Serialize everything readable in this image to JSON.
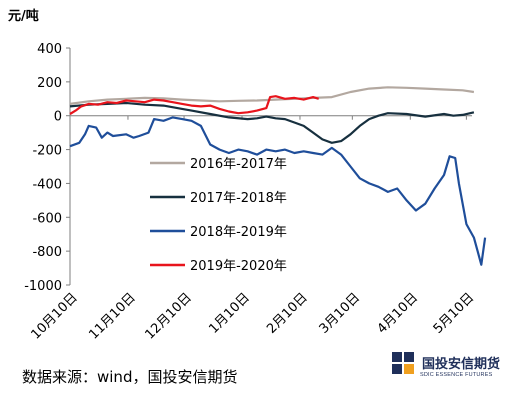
{
  "chart_data": {
    "type": "line",
    "unit_label": "元/吨",
    "ylim": [
      -1000,
      400
    ],
    "yticks": [
      400,
      200,
      0,
      -200,
      -400,
      -600,
      -800,
      -1000
    ],
    "x_domain": [
      0,
      215
    ],
    "xticks": [
      {
        "label": "10月10日",
        "pos": 0
      },
      {
        "label": "11月10日",
        "pos": 31
      },
      {
        "label": "12月10日",
        "pos": 61
      },
      {
        "label": "1月10日",
        "pos": 92
      },
      {
        "label": "2月10日",
        "pos": 123
      },
      {
        "label": "3月10日",
        "pos": 151
      },
      {
        "label": "4月10日",
        "pos": 182
      },
      {
        "label": "5月10日",
        "pos": 212
      }
    ],
    "grid": false,
    "legend_position": "center",
    "series": [
      {
        "name": "2016年-2017年",
        "color": "#b3a8a0",
        "points": [
          [
            0,
            70
          ],
          [
            10,
            85
          ],
          [
            20,
            95
          ],
          [
            30,
            100
          ],
          [
            40,
            105
          ],
          [
            50,
            102
          ],
          [
            60,
            95
          ],
          [
            70,
            90
          ],
          [
            80,
            85
          ],
          [
            90,
            88
          ],
          [
            100,
            90
          ],
          [
            110,
            95
          ],
          [
            120,
            100
          ],
          [
            130,
            105
          ],
          [
            140,
            110
          ],
          [
            150,
            140
          ],
          [
            160,
            160
          ],
          [
            170,
            168
          ],
          [
            180,
            165
          ],
          [
            190,
            160
          ],
          [
            200,
            155
          ],
          [
            210,
            150
          ],
          [
            216,
            140
          ]
        ]
      },
      {
        "name": "2017年-2018年",
        "color": "#17303f",
        "points": [
          [
            0,
            55
          ],
          [
            10,
            65
          ],
          [
            20,
            70
          ],
          [
            30,
            75
          ],
          [
            40,
            65
          ],
          [
            50,
            60
          ],
          [
            60,
            40
          ],
          [
            65,
            30
          ],
          [
            75,
            10
          ],
          [
            85,
            -10
          ],
          [
            95,
            -20
          ],
          [
            100,
            -15
          ],
          [
            105,
            -5
          ],
          [
            110,
            -15
          ],
          [
            115,
            -20
          ],
          [
            120,
            -40
          ],
          [
            125,
            -60
          ],
          [
            130,
            -100
          ],
          [
            135,
            -140
          ],
          [
            140,
            -160
          ],
          [
            145,
            -150
          ],
          [
            150,
            -110
          ],
          [
            155,
            -60
          ],
          [
            160,
            -20
          ],
          [
            165,
            0
          ],
          [
            170,
            15
          ],
          [
            180,
            10
          ],
          [
            190,
            -5
          ],
          [
            200,
            10
          ],
          [
            205,
            0
          ],
          [
            210,
            5
          ],
          [
            216,
            20
          ]
        ]
      },
      {
        "name": "2018年-2019年",
        "color": "#1f4e9a",
        "points": [
          [
            0,
            -180
          ],
          [
            5,
            -160
          ],
          [
            8,
            -110
          ],
          [
            10,
            -60
          ],
          [
            14,
            -70
          ],
          [
            17,
            -130
          ],
          [
            20,
            -100
          ],
          [
            23,
            -120
          ],
          [
            30,
            -110
          ],
          [
            34,
            -130
          ],
          [
            37,
            -120
          ],
          [
            42,
            -100
          ],
          [
            45,
            -20
          ],
          [
            50,
            -30
          ],
          [
            55,
            -10
          ],
          [
            60,
            -20
          ],
          [
            65,
            -30
          ],
          [
            70,
            -60
          ],
          [
            75,
            -170
          ],
          [
            80,
            -200
          ],
          [
            85,
            -220
          ],
          [
            90,
            -200
          ],
          [
            95,
            -210
          ],
          [
            100,
            -230
          ],
          [
            105,
            -200
          ],
          [
            110,
            -210
          ],
          [
            115,
            -200
          ],
          [
            120,
            -220
          ],
          [
            125,
            -210
          ],
          [
            130,
            -220
          ],
          [
            135,
            -230
          ],
          [
            140,
            -190
          ],
          [
            145,
            -230
          ],
          [
            150,
            -300
          ],
          [
            155,
            -370
          ],
          [
            160,
            -400
          ],
          [
            165,
            -420
          ],
          [
            170,
            -450
          ],
          [
            175,
            -430
          ],
          [
            180,
            -500
          ],
          [
            185,
            -560
          ],
          [
            190,
            -520
          ],
          [
            195,
            -430
          ],
          [
            200,
            -350
          ],
          [
            203,
            -240
          ],
          [
            206,
            -250
          ],
          [
            208,
            -400
          ],
          [
            212,
            -640
          ],
          [
            216,
            -720
          ],
          [
            218,
            -800
          ],
          [
            220,
            -880
          ],
          [
            222,
            -720
          ]
        ]
      },
      {
        "name": "2019年-2020年",
        "color": "#e8141c",
        "points": [
          [
            0,
            10
          ],
          [
            3,
            30
          ],
          [
            6,
            55
          ],
          [
            10,
            70
          ],
          [
            15,
            65
          ],
          [
            20,
            80
          ],
          [
            25,
            75
          ],
          [
            30,
            90
          ],
          [
            35,
            85
          ],
          [
            40,
            80
          ],
          [
            45,
            95
          ],
          [
            50,
            90
          ],
          [
            55,
            80
          ],
          [
            60,
            70
          ],
          [
            65,
            60
          ],
          [
            70,
            55
          ],
          [
            75,
            60
          ],
          [
            80,
            40
          ],
          [
            85,
            25
          ],
          [
            90,
            15
          ],
          [
            95,
            20
          ],
          [
            100,
            30
          ],
          [
            105,
            45
          ],
          [
            107,
            110
          ],
          [
            110,
            115
          ],
          [
            115,
            100
          ],
          [
            120,
            105
          ],
          [
            125,
            95
          ],
          [
            130,
            110
          ],
          [
            133,
            100
          ]
        ]
      }
    ]
  },
  "source_text": "数据来源：wind，国投安信期货",
  "logo": {
    "cn": "国投安信期货",
    "en": "SDIC ESSENCE FUTURES"
  }
}
